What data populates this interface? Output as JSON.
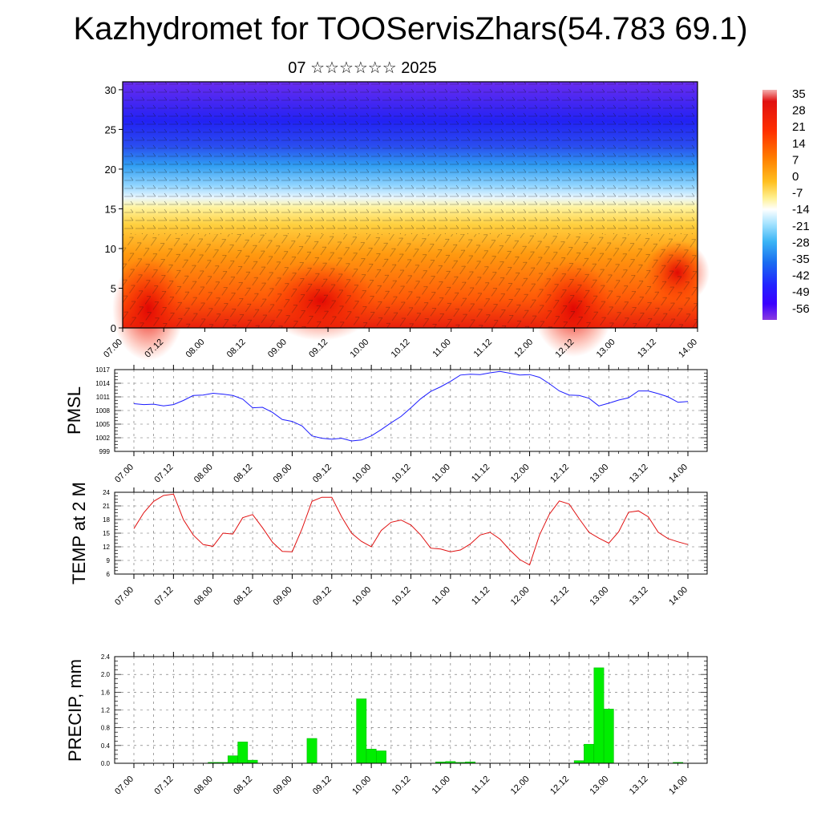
{
  "header": {
    "title": "Kazhydromet for TOOServisZhars(54.783 69.1)",
    "subtitle": "07 ☆☆☆☆☆☆ 2025"
  },
  "time_labels": [
    "07.00",
    "07.12",
    "08.00",
    "08.12",
    "09.00",
    "09.12",
    "10.00",
    "10.12",
    "11.00",
    "11.12",
    "12.00",
    "12.12",
    "13.00",
    "13.12",
    "14.00"
  ],
  "chart_data": [
    {
      "type": "heatmap",
      "name": "cross-section",
      "ylim": [
        0,
        31
      ],
      "yticks": [
        0,
        5,
        10,
        15,
        20,
        25,
        30
      ],
      "colorbar": {
        "labels": [
          "35",
          "28",
          "21",
          "14",
          "7",
          "0",
          "-7",
          "-14",
          "-21",
          "-28",
          "-35",
          "-42",
          "-49",
          "-56"
        ],
        "colors": [
          "#f4a6a6",
          "#d90000",
          "#ff3a00",
          "#ff7a00",
          "#ffb000",
          "#ffe040",
          "#fff5a0",
          "#ffffff",
          "#9fe0ff",
          "#3ab4f5",
          "#1a6df0",
          "#2a2aff",
          "#3800ff",
          "#7a2ee0"
        ]
      },
      "series_colors": {
        "surface_hot": "#e8100a",
        "warm": "#ff8a10",
        "yellow": "#ffe060",
        "cold": "#1f1ff0",
        "top": "#6a2cf0"
      }
    },
    {
      "type": "line",
      "name": "pmsl",
      "ylabel": "PMSL",
      "ylim": [
        999,
        1017
      ],
      "yticks": [
        999,
        1002,
        1005,
        1008,
        1011,
        1014,
        1017
      ],
      "color": "#1c1cff",
      "x": [
        0,
        1,
        2,
        3,
        4,
        5,
        6,
        7,
        8,
        9,
        10,
        11,
        12,
        13,
        14,
        15,
        16,
        17,
        18,
        19,
        20,
        21,
        22,
        23,
        24,
        25,
        26,
        27,
        28,
        29,
        30,
        31,
        32,
        33,
        34,
        35,
        36,
        37,
        38,
        39,
        40,
        41,
        42,
        43,
        44,
        45,
        46,
        47,
        48,
        49,
        50,
        51,
        52,
        53,
        54,
        55,
        56
      ],
      "values": [
        1009.5,
        1009.3,
        1009.4,
        1009,
        1009.3,
        1010.2,
        1011.3,
        1011.4,
        1011.8,
        1011.6,
        1011.3,
        1010.5,
        1008.6,
        1008.7,
        1007.6,
        1006,
        1005.6,
        1004.6,
        1002.4,
        1001.9,
        1001.7,
        1001.9,
        1001.3,
        1001.5,
        1002.4,
        1003.8,
        1005.3,
        1006.7,
        1008.6,
        1010.6,
        1012.2,
        1013.2,
        1014.4,
        1015.8,
        1016,
        1015.9,
        1016.3,
        1016.6,
        1016.2,
        1015.8,
        1015.9,
        1015.3,
        1013.9,
        1012.3,
        1011.4,
        1011.3,
        1010.7,
        1009,
        1009.6,
        1010.3,
        1010.8,
        1012.3,
        1012.3,
        1011.7,
        1011,
        1009.8,
        1010
      ]
    },
    {
      "type": "line",
      "name": "temp2m",
      "ylabel": "TEMP at 2 M",
      "ylim": [
        6,
        24
      ],
      "yticks": [
        6,
        9,
        12,
        15,
        18,
        21,
        24
      ],
      "color": "#e01010",
      "x": [
        0,
        1,
        2,
        3,
        4,
        5,
        6,
        7,
        8,
        9,
        10,
        11,
        12,
        13,
        14,
        15,
        16,
        17,
        18,
        19,
        20,
        21,
        22,
        23,
        24,
        25,
        26,
        27,
        28,
        29,
        30,
        31,
        32,
        33,
        34,
        35,
        36,
        37,
        38,
        39,
        40,
        41,
        42,
        43,
        44,
        45,
        46,
        47,
        48,
        49,
        50,
        51,
        52,
        53,
        54,
        55,
        56
      ],
      "values": [
        16,
        19.5,
        22,
        23.3,
        23.6,
        18,
        14.6,
        12.5,
        12.1,
        15,
        14.8,
        18.4,
        19.1,
        16.2,
        13,
        11,
        10.9,
        16,
        22,
        22.9,
        22.9,
        18.6,
        15,
        13.2,
        12,
        15.6,
        17.4,
        17.9,
        16.8,
        14.6,
        11.7,
        11.5,
        10.9,
        11.3,
        12.6,
        14.6,
        15.2,
        13.7,
        11.3,
        9.2,
        8,
        14.6,
        19.2,
        22.1,
        21.4,
        18.2,
        15.2,
        13.9,
        12.8,
        15.3,
        19.6,
        19.9,
        18.6,
        15.2,
        13.8,
        13.1,
        12.5
      ]
    },
    {
      "type": "bar",
      "name": "precip",
      "ylabel": "PRECIP, mm",
      "ylim": [
        0,
        2.4
      ],
      "yticks": [
        "0.0",
        "0.4",
        "0.8",
        "1.2",
        "1.6",
        "2.0",
        "2.4"
      ],
      "color": "#00ee00",
      "x": [
        8,
        9,
        10,
        11,
        12,
        18,
        23,
        24,
        25,
        31,
        32,
        33,
        34,
        45,
        46,
        47,
        48,
        55
      ],
      "values": [
        0.02,
        0.02,
        0.17,
        0.48,
        0.07,
        0.56,
        1.45,
        0.32,
        0.28,
        0.03,
        0.04,
        0.02,
        0.03,
        0.06,
        0.43,
        2.15,
        1.22,
        0.02
      ]
    }
  ]
}
